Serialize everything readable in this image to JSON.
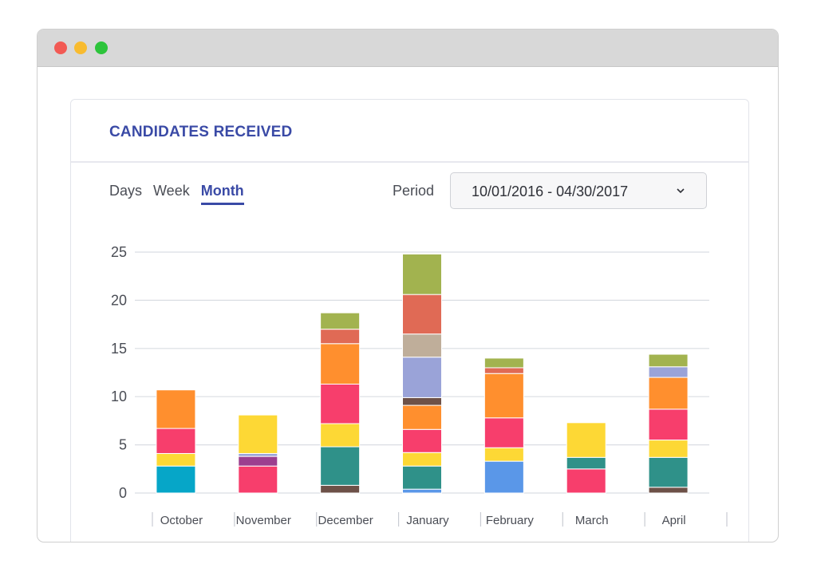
{
  "window": {
    "controls": [
      "close",
      "minimize",
      "maximize"
    ]
  },
  "card": {
    "title": "CANDIDATES RECEIVED"
  },
  "tabs": [
    {
      "label": "Days",
      "active": false
    },
    {
      "label": "Week",
      "active": false
    },
    {
      "label": "Month",
      "active": true
    }
  ],
  "period": {
    "label": "Period",
    "value": "10/01/2016 - 04/30/2017",
    "icon": "chevron-down-icon"
  },
  "chart_data": {
    "type": "bar",
    "stacked": true,
    "categories": [
      "October",
      "November",
      "December",
      "January",
      "February",
      "March",
      "April"
    ],
    "yticks": [
      0,
      5,
      10,
      15,
      20,
      25
    ],
    "ylim": [
      0,
      25
    ],
    "grid": true,
    "stacks": [
      [
        {
          "value": 2.8,
          "color": "#06a6c8"
        },
        {
          "value": 1.3,
          "color": "#fdd835"
        },
        {
          "value": 2.6,
          "color": "#f73e6c"
        },
        {
          "value": 4.0,
          "color": "#ff8f2e"
        }
      ],
      [
        {
          "value": 2.8,
          "color": "#f73e6c"
        },
        {
          "value": 1.0,
          "color": "#9c3f8f"
        },
        {
          "value": 0.3,
          "color": "#9aa3d8"
        },
        {
          "value": 4.0,
          "color": "#fdd835"
        }
      ],
      [
        {
          "value": 0.8,
          "color": "#6d5148"
        },
        {
          "value": 4.0,
          "color": "#2f9189"
        },
        {
          "value": 2.4,
          "color": "#fdd835"
        },
        {
          "value": 4.1,
          "color": "#f73e6c"
        },
        {
          "value": 4.2,
          "color": "#ff8f2e"
        },
        {
          "value": 1.5,
          "color": "#e06a55"
        },
        {
          "value": 1.7,
          "color": "#a2b34f"
        }
      ],
      [
        {
          "value": 0.4,
          "color": "#5a97e8"
        },
        {
          "value": 2.4,
          "color": "#2f9189"
        },
        {
          "value": 1.4,
          "color": "#fdd835"
        },
        {
          "value": 2.4,
          "color": "#f73e6c"
        },
        {
          "value": 2.5,
          "color": "#ff8f2e"
        },
        {
          "value": 0.8,
          "color": "#6d5148"
        },
        {
          "value": 4.2,
          "color": "#9aa3d8"
        },
        {
          "value": 2.4,
          "color": "#bfae9a"
        },
        {
          "value": 4.1,
          "color": "#e06a55"
        },
        {
          "value": 4.2,
          "color": "#a2b34f"
        }
      ],
      [
        {
          "value": 3.3,
          "color": "#5a97e8"
        },
        {
          "value": 1.4,
          "color": "#fdd835"
        },
        {
          "value": 3.1,
          "color": "#f73e6c"
        },
        {
          "value": 4.6,
          "color": "#ff8f2e"
        },
        {
          "value": 0.6,
          "color": "#e06a55"
        },
        {
          "value": 1.0,
          "color": "#a2b34f"
        }
      ],
      [
        {
          "value": 2.5,
          "color": "#f73e6c"
        },
        {
          "value": 1.2,
          "color": "#2f9189"
        },
        {
          "value": 3.6,
          "color": "#fdd835"
        }
      ],
      [
        {
          "value": 0.6,
          "color": "#6d5148"
        },
        {
          "value": 3.1,
          "color": "#2f9189"
        },
        {
          "value": 1.8,
          "color": "#fdd835"
        },
        {
          "value": 3.2,
          "color": "#f73e6c"
        },
        {
          "value": 3.3,
          "color": "#ff8f2e"
        },
        {
          "value": 1.1,
          "color": "#9aa3d8"
        },
        {
          "value": 1.3,
          "color": "#a2b34f"
        }
      ]
    ]
  }
}
